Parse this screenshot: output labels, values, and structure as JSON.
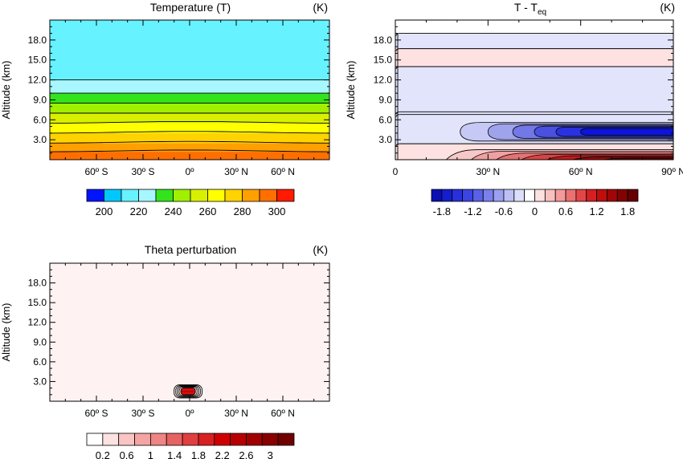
{
  "chart_data": [
    {
      "type": "heatmap",
      "title": "Temperature (T)",
      "units": "(K)",
      "ylabel": "Altitude (km)",
      "xlim": [
        -90,
        90
      ],
      "ylim": [
        0,
        21
      ],
      "x_ticks": [
        {
          "value": -60,
          "label": "60º S"
        },
        {
          "value": -30,
          "label": "30º S"
        },
        {
          "value": 0,
          "label": "0º"
        },
        {
          "value": 30,
          "label": "30º N"
        },
        {
          "value": 60,
          "label": "60º N"
        }
      ],
      "y_ticks": [
        {
          "value": 3,
          "label": "3.0"
        },
        {
          "value": 6,
          "label": "6.0"
        },
        {
          "value": 9,
          "label": "9.0"
        },
        {
          "value": 12,
          "label": "12.0"
        },
        {
          "value": 15,
          "label": "15.0"
        },
        {
          "value": 18,
          "label": "18.0"
        }
      ],
      "bands": [
        {
          "y0": 0,
          "y1": 1.2,
          "color": "#ff6f00"
        },
        {
          "y0": 1.2,
          "y1": 2.5,
          "color": "#ffa000"
        },
        {
          "y0": 2.5,
          "y1": 4.0,
          "color": "#ffd300"
        },
        {
          "y0": 4.0,
          "y1": 5.5,
          "color": "#ffff00"
        },
        {
          "y0": 5.5,
          "y1": 7.0,
          "color": "#d8f000"
        },
        {
          "y0": 7.0,
          "y1": 8.5,
          "color": "#a0f000"
        },
        {
          "y0": 8.5,
          "y1": 10.0,
          "color": "#33e31b"
        },
        {
          "y0": 10.0,
          "y1": 12.0,
          "color": "#a8f6ff"
        },
        {
          "y0": 12.0,
          "y1": 21.0,
          "color": "#66f2ff"
        }
      ],
      "contour_levels_km": [
        1.2,
        2.5,
        4.0,
        5.5,
        7.0,
        8.5,
        10.0,
        12.0
      ],
      "colorbar": {
        "colors": [
          "#0014ff",
          "#00c8ff",
          "#66f2ff",
          "#a8f6ff",
          "#33e31b",
          "#a0f000",
          "#d8f000",
          "#ffff00",
          "#ffd300",
          "#ffa000",
          "#ff6f00",
          "#ff1a00"
        ],
        "labels": [
          "200",
          "220",
          "240",
          "260",
          "280",
          "300"
        ]
      }
    },
    {
      "type": "heatmap",
      "title": "T - T",
      "title_sub": "eq",
      "units": "(K)",
      "ylabel": "Altitude (km)",
      "xlim": [
        0,
        90
      ],
      "ylim": [
        0,
        21
      ],
      "x_ticks": [
        {
          "value": 0,
          "label": "0"
        },
        {
          "value": 30,
          "label": "30º N"
        },
        {
          "value": 60,
          "label": "60º N"
        },
        {
          "value": 90,
          "label": "90º N"
        }
      ],
      "y_ticks": [
        {
          "value": 3,
          "label": "3.0"
        },
        {
          "value": 6,
          "label": "6.0"
        },
        {
          "value": 9,
          "label": "9.0"
        },
        {
          "value": 12,
          "label": "12.0"
        },
        {
          "value": 15,
          "label": "15.0"
        },
        {
          "value": 18,
          "label": "18.0"
        }
      ],
      "background_bands": [
        {
          "y0": 0,
          "y1": 2.4,
          "color": "#fee2e2"
        },
        {
          "y0": 2.4,
          "y1": 6.8,
          "color": "#e2e4fb"
        },
        {
          "y0": 6.8,
          "y1": 14.0,
          "color": "#e2e4fb"
        },
        {
          "y0": 14.0,
          "y1": 16.7,
          "color": "#fee2e2"
        },
        {
          "y0": 16.7,
          "y1": 19.0,
          "color": "#e2e4fb"
        },
        {
          "y0": 19.0,
          "y1": 21.0,
          "color": "#ffffff"
        }
      ],
      "band_lines_km": [
        2.4,
        6.8,
        7.2,
        14.0,
        16.7,
        19.0
      ],
      "cold_anomaly": {
        "center_km": 4.2,
        "levels": [
          {
            "x0": 21,
            "half_h": 1.4,
            "color": "#c6c9f5"
          },
          {
            "x0": 30,
            "half_h": 1.2,
            "color": "#9fa3ec"
          },
          {
            "x0": 38,
            "half_h": 1.0,
            "color": "#7278e6"
          },
          {
            "x0": 45,
            "half_h": 0.85,
            "color": "#4a50e0"
          },
          {
            "x0": 52,
            "half_h": 0.7,
            "color": "#2a31e0"
          },
          {
            "x0": 60,
            "half_h": 0.5,
            "color": "#0d14dc"
          }
        ]
      },
      "warm_anomaly": {
        "levels": [
          {
            "x0": 16,
            "top_km": 1.5,
            "color": "#f8c8c8"
          },
          {
            "x0": 24,
            "top_km": 1.25,
            "color": "#f0a0a0"
          },
          {
            "x0": 32,
            "top_km": 1.0,
            "color": "#e57373"
          },
          {
            "x0": 40,
            "top_km": 0.8,
            "color": "#d84343"
          },
          {
            "x0": 48,
            "top_km": 0.6,
            "color": "#c41a1a"
          },
          {
            "x0": 56,
            "top_km": 0.4,
            "color": "#a10b0b"
          },
          {
            "x0": 65,
            "top_km": 0.22,
            "color": "#7a0606"
          }
        ]
      },
      "colorbar": {
        "colors": [
          "#0a0fb4",
          "#141ecc",
          "#2830dd",
          "#3c44e3",
          "#5a60e8",
          "#7a80ec",
          "#9ba0f0",
          "#bcc0f5",
          "#dcdffa",
          "#ffffff",
          "#fde0e0",
          "#f9c0c0",
          "#f49a9a",
          "#ec7070",
          "#e24646",
          "#d42020",
          "#be0e0e",
          "#a00606",
          "#820303",
          "#640000"
        ],
        "labels": [
          "-1.8",
          "-1.2",
          "-0.6",
          "0",
          "0.6",
          "1.2",
          "1.8"
        ]
      }
    },
    {
      "type": "heatmap",
      "title": "Theta perturbation",
      "units": "(K)",
      "ylabel": "Altitude (km)",
      "xlim": [
        -90,
        90
      ],
      "ylim": [
        0,
        21
      ],
      "x_ticks": [
        {
          "value": -60,
          "label": "60º S"
        },
        {
          "value": -30,
          "label": "30º S"
        },
        {
          "value": 0,
          "label": "0º"
        },
        {
          "value": 30,
          "label": "30º N"
        },
        {
          "value": 60,
          "label": "60º N"
        }
      ],
      "y_ticks": [
        {
          "value": 3,
          "label": "3.0"
        },
        {
          "value": 6,
          "label": "6.0"
        },
        {
          "value": 9,
          "label": "9.0"
        },
        {
          "value": 12,
          "label": "12.0"
        },
        {
          "value": 15,
          "label": "15.0"
        },
        {
          "value": 18,
          "label": "18.0"
        }
      ],
      "background_color": "#fff2f2",
      "bubble": {
        "x_center": -1,
        "y_center": 1.5,
        "x_half_width": 9,
        "y_half_height": 1.0,
        "color": "#d81010"
      },
      "colorbar": {
        "colors": [
          "#ffffff",
          "#fde2e2",
          "#f9c4c4",
          "#f4a4a4",
          "#ee8484",
          "#e76262",
          "#e04040",
          "#d82020",
          "#d00000",
          "#b80000",
          "#a00000",
          "#880000",
          "#700000"
        ],
        "labels": [
          "0.2",
          "0.6",
          "1",
          "1.4",
          "1.8",
          "2.2",
          "2.6",
          "3"
        ]
      }
    }
  ]
}
